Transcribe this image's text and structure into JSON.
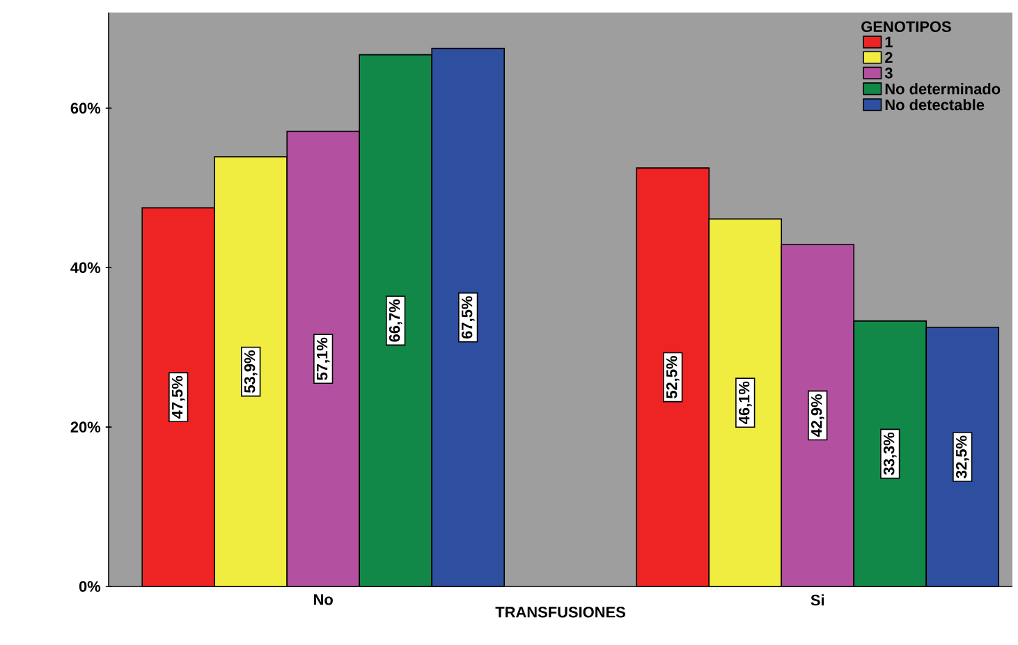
{
  "chart_data": {
    "type": "bar",
    "xlabel": "TRANSFUSIONES",
    "legend_title": "GENOTIPOS",
    "legend": "top right",
    "categories": [
      "No",
      "Si"
    ],
    "ylim": [
      0,
      72
    ],
    "yticks": [
      {
        "value": 0,
        "label": "0%"
      },
      {
        "value": 20,
        "label": "20%"
      },
      {
        "value": 40,
        "label": "40%"
      },
      {
        "value": 60,
        "label": "60%"
      }
    ],
    "series": [
      {
        "name": "1",
        "color": "#ee2424",
        "values": [
          47.5,
          52.5
        ],
        "value_labels": [
          "47,5%",
          "52,5%"
        ]
      },
      {
        "name": "2",
        "color": "#f0ec40",
        "values": [
          53.9,
          46.1
        ],
        "value_labels": [
          "53,9%",
          "46,1%"
        ]
      },
      {
        "name": "3",
        "color": "#b450a0",
        "values": [
          57.1,
          42.9
        ],
        "value_labels": [
          "57,1%",
          "42,9%"
        ]
      },
      {
        "name": "No determinado",
        "color": "#128848",
        "values": [
          66.7,
          33.3
        ],
        "value_labels": [
          "66,7%",
          "33,3%"
        ]
      },
      {
        "name": "No detectable",
        "color": "#2e4fa0",
        "values": [
          67.5,
          32.5
        ],
        "value_labels": [
          "67,5%",
          "32,5%"
        ]
      }
    ]
  }
}
